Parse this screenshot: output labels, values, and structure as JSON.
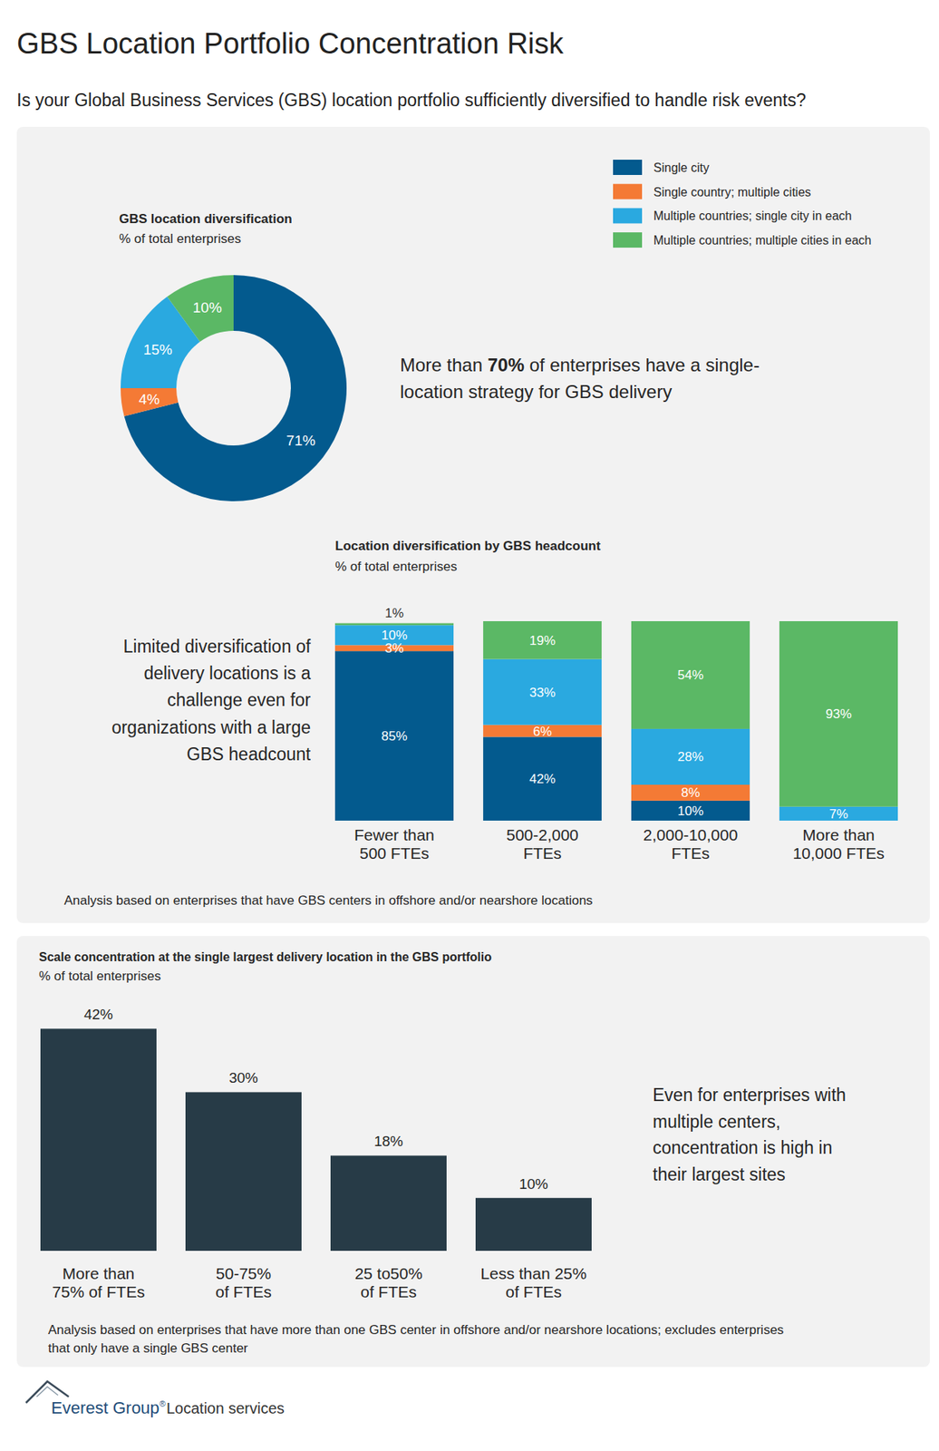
{
  "title": "GBS Location Portfolio Concentration Risk",
  "subtitle": "Is your Global Business Services (GBS) location portfolio sufficiently diversified to handle risk events?",
  "chart_data": [
    {
      "type": "pie",
      "title": "GBS location diversification",
      "subtitle": "% of total enterprises",
      "categories": [
        "Single city",
        "Single country; multiple cities",
        "Multiple countries; single city in each",
        "Multiple countries; multiple cities in each"
      ],
      "values": [
        71,
        4,
        15,
        10
      ],
      "value_labels": [
        "71%",
        "4%",
        "15%",
        "10%"
      ],
      "colors": [
        "#035a8e",
        "#f47a35",
        "#2aa9e0",
        "#5bb865"
      ],
      "data_labels": true,
      "legend": "top-right",
      "annotation": {
        "lines": [
          "More than 70% of enterprises have a single-",
          "location strategy for GBS delivery"
        ],
        "emphasis": "70%"
      }
    },
    {
      "type": "bar",
      "stacked": true,
      "title": "Location diversification by GBS headcount",
      "subtitle": "% of total enterprises",
      "categories": [
        "Fewer than\n500 FTEs",
        "500-2,000\nFTEs",
        "2,000-10,000\nFTEs",
        "More than\n10,000 FTEs"
      ],
      "series": [
        {
          "name": "Single city",
          "color": "#035a8e",
          "values": [
            85,
            42,
            10,
            null
          ],
          "value_labels": [
            "85%",
            "42%",
            "10%",
            null
          ]
        },
        {
          "name": "Single country; multiple cities",
          "color": "#f47a35",
          "values": [
            3,
            6,
            8,
            null
          ],
          "value_labels": [
            "3%",
            "6%",
            "8%",
            null
          ]
        },
        {
          "name": "Multiple countries; single city in each",
          "color": "#2aa9e0",
          "values": [
            10,
            33,
            28,
            7
          ],
          "value_labels": [
            "10%",
            "33%",
            "28%",
            "7%"
          ]
        },
        {
          "name": "Multiple countries; multiple cities in each",
          "color": "#5bb865",
          "values": [
            1,
            19,
            54,
            93
          ],
          "value_labels": [
            "1%",
            "19%",
            "54%",
            "93%"
          ]
        }
      ],
      "ylim": [
        0,
        100
      ],
      "tick_labels": false,
      "data_labels": true,
      "annotation": {
        "lines": [
          "Limited diversification of",
          "delivery locations is a",
          "challenge even for",
          "organizations with a large",
          "GBS headcount"
        ]
      },
      "note": [
        "Analysis based on enterprises that have GBS centers in offshore and/or nearshore locations"
      ]
    },
    {
      "type": "bar",
      "title": "Scale concentration at the single largest delivery location in the GBS portfolio",
      "subtitle": "% of total enterprises",
      "categories": [
        "More than\n75% of FTEs",
        "50-75%\nof FTEs",
        "25 to50%\nof FTEs",
        "Less than 25%\nof FTEs"
      ],
      "values": [
        42,
        30,
        18,
        10
      ],
      "value_labels": [
        "42%",
        "30%",
        "18%",
        "10%"
      ],
      "color": "#273b47",
      "ylim": [
        0,
        50
      ],
      "tick_labels": false,
      "data_labels": true,
      "annotation": {
        "lines": [
          "Even for enterprises with",
          "multiple centers,",
          "concentration is high in",
          "their largest sites"
        ]
      },
      "note": [
        "Analysis based on enterprises that have more than one GBS center in offshore and/or nearshore locations; excludes enterprises",
        "that only have a single GBS center"
      ]
    }
  ],
  "footer": {
    "brand": "Everest Group",
    "registered": "®",
    "section": "Location services"
  }
}
